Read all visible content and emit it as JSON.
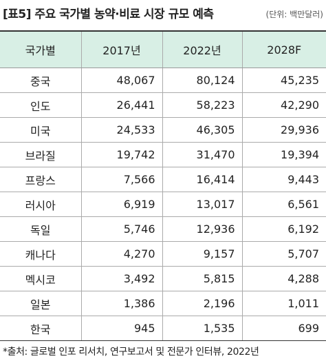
{
  "header": {
    "title": "[표5] 주요 국가별 농약·비료 시장 규모 예측",
    "unit": "(단위: 백만달러)"
  },
  "table": {
    "columns": [
      "국가별",
      "2017년",
      "2022년",
      "2028F"
    ],
    "rows": [
      [
        "중국",
        "48,067",
        "80,124",
        "45,235"
      ],
      [
        "인도",
        "26,441",
        "58,223",
        "42,290"
      ],
      [
        "미국",
        "24,533",
        "46,305",
        "29,936"
      ],
      [
        "브라질",
        "19,742",
        "31,470",
        "19,394"
      ],
      [
        "프랑스",
        "7,566",
        "16,414",
        "9,443"
      ],
      [
        "러시아",
        "6,919",
        "13,017",
        "6,561"
      ],
      [
        "독일",
        "5,746",
        "12,936",
        "6,192"
      ],
      [
        "캐나다",
        "4,270",
        "9,157",
        "5,707"
      ],
      [
        "멕시코",
        "3,492",
        "5,815",
        "4,288"
      ],
      [
        "일본",
        "1,386",
        "2,196",
        "1,011"
      ],
      [
        "한국",
        "945",
        "1,535",
        "699"
      ]
    ]
  },
  "footer": {
    "source": "*출처: 글로벌 인포 리서치, 연구보고서 및 전문가 인터뷰, 2022년"
  }
}
